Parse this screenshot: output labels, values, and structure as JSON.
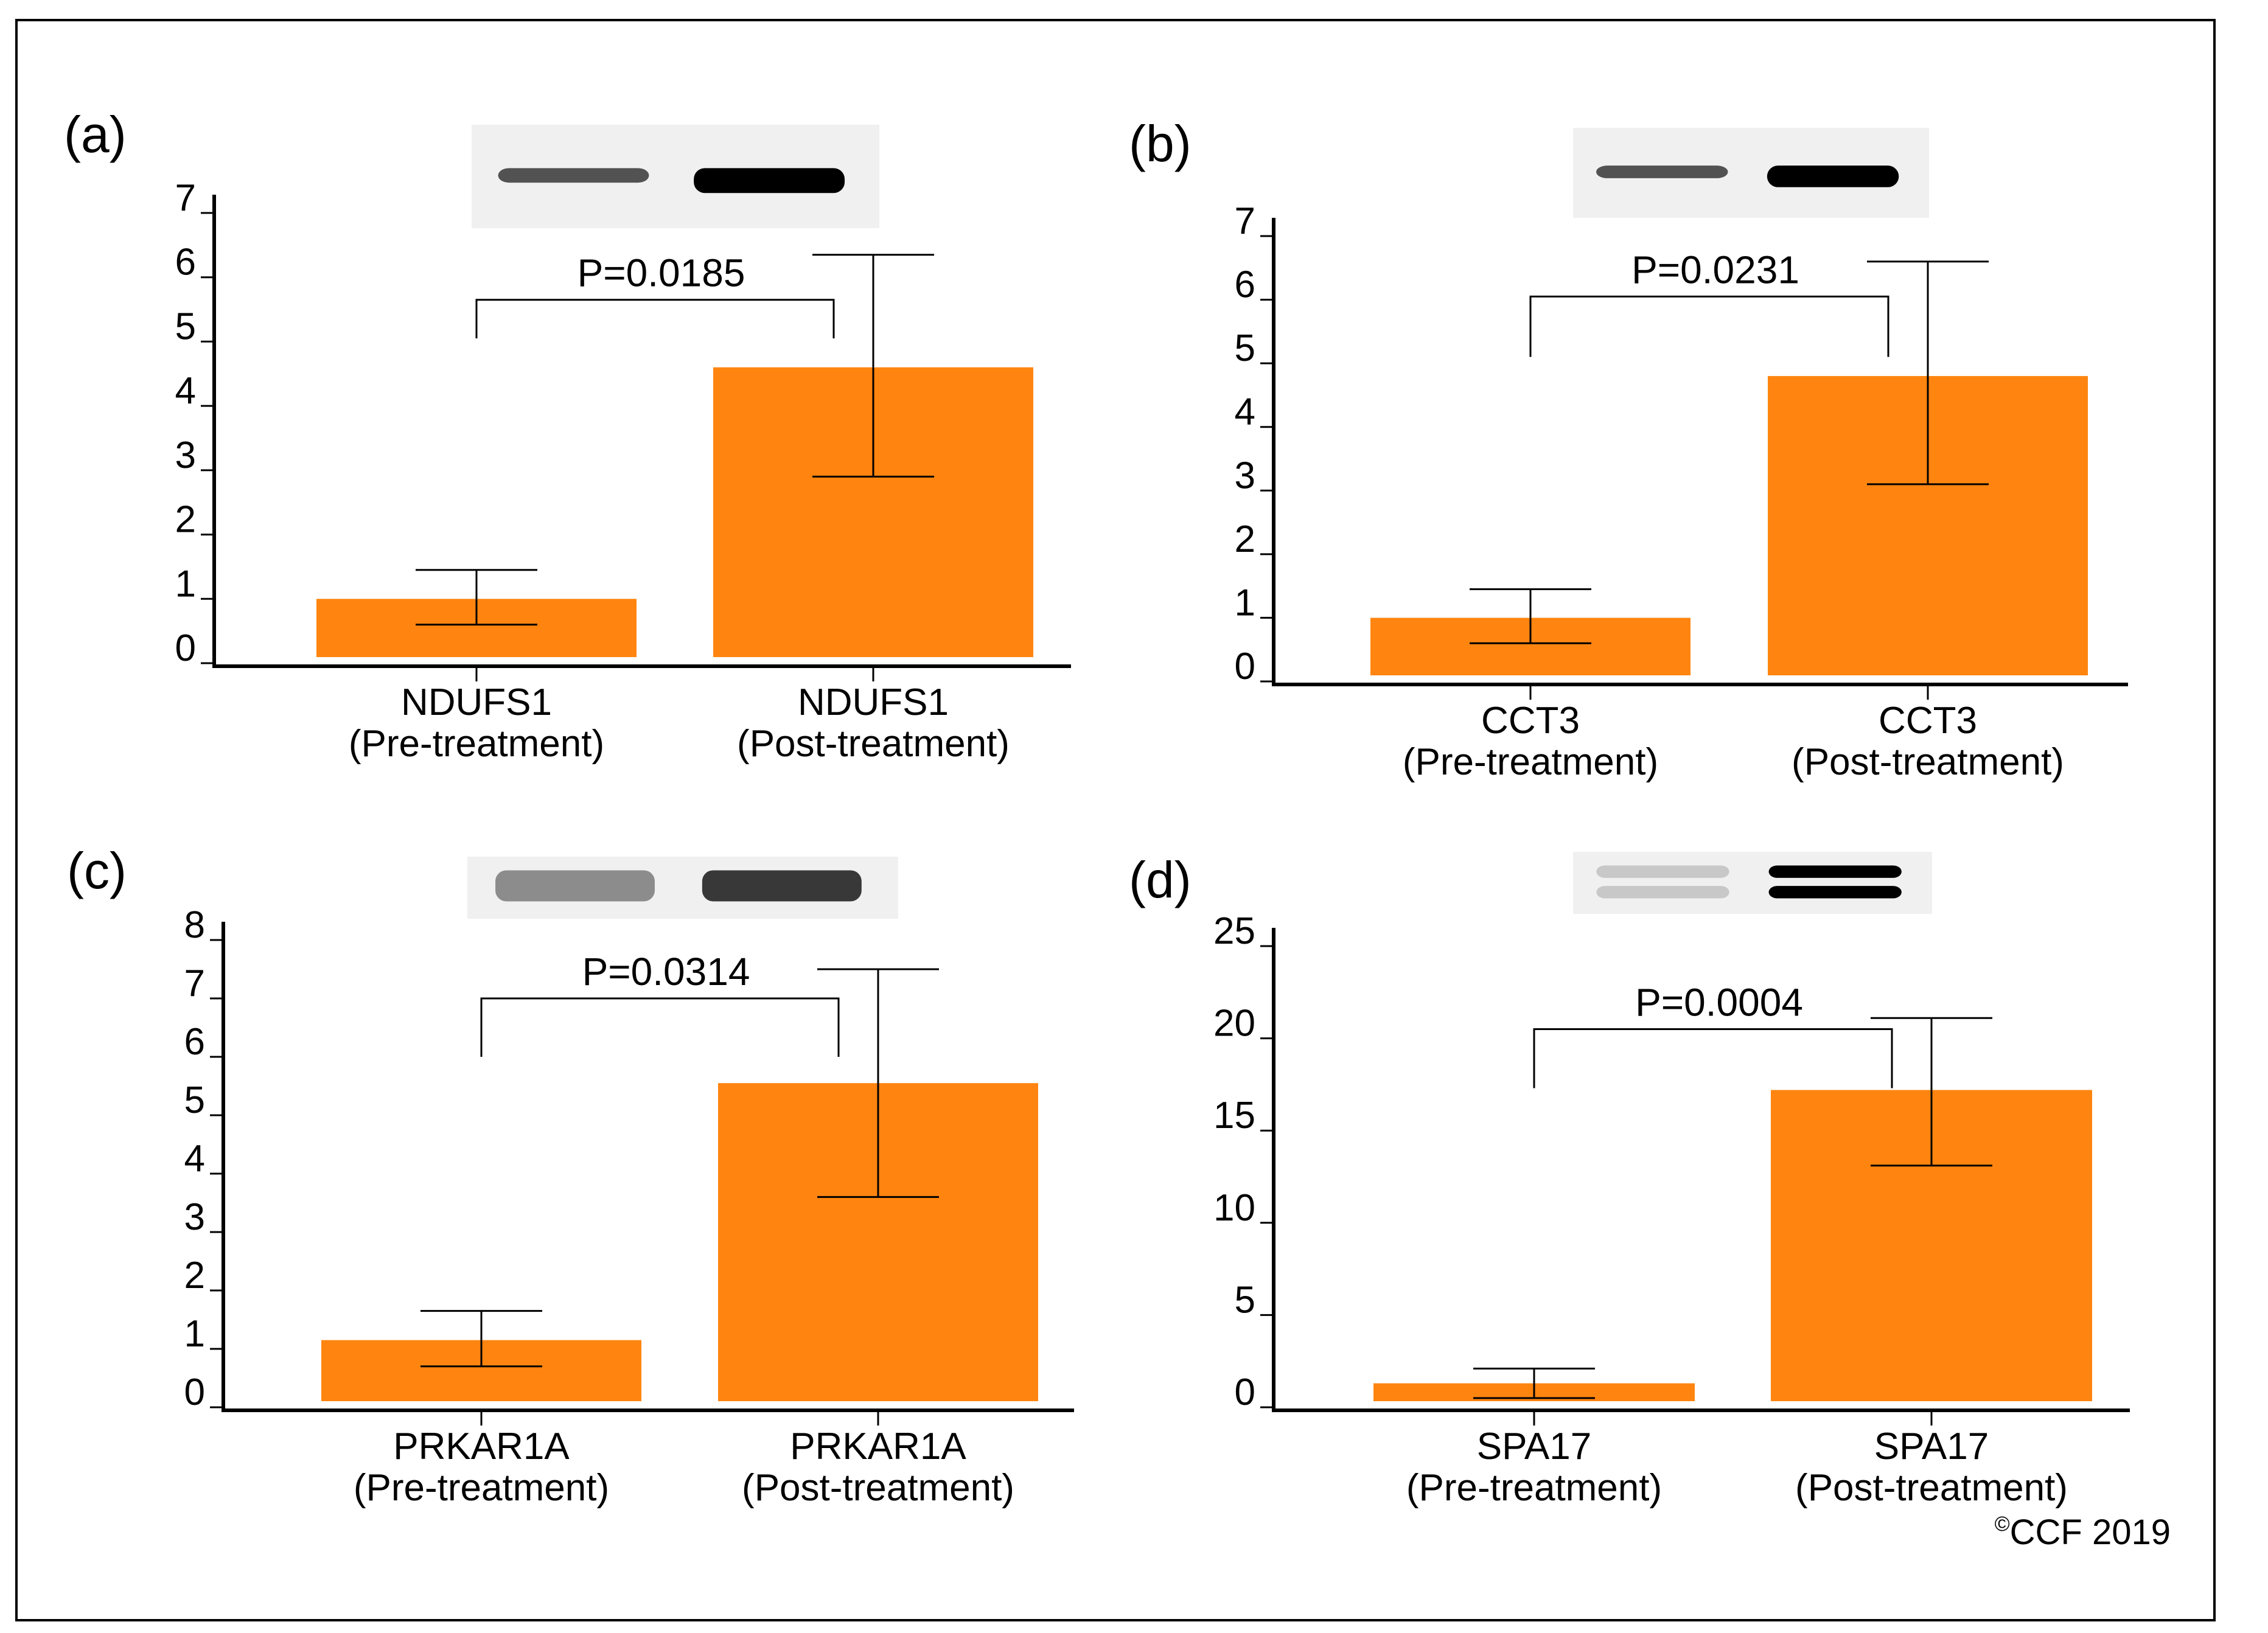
{
  "figure": {
    "bar_color": "#FF8510",
    "copyright": {
      "symbol": "©",
      "text": "CCF 2019"
    }
  },
  "chart_data": [
    {
      "type": "bar",
      "panel_label": "(a)",
      "categories": [
        "NDUFS1\n(Pre-treatment)",
        "NDUFS1\n(Post-treatment)"
      ],
      "category_lines": [
        [
          "NDUFS1",
          "(Pre-treatment)"
        ],
        [
          "NDUFS1",
          "(Post-treatment)"
        ]
      ],
      "values": [
        1.0,
        4.6
      ],
      "error_low": [
        0.6,
        2.9
      ],
      "error_high": [
        1.45,
        6.35
      ],
      "ylim": [
        0,
        7
      ],
      "yticks": [
        0,
        1,
        2,
        3,
        4,
        5,
        6,
        7
      ],
      "significance": {
        "label": "P=0.0185",
        "bracket_level": 5.65,
        "bracket_drop": 0.6
      },
      "blot": {
        "lane_intensity": [
          0.65,
          1.0
        ],
        "lane_count": 2,
        "style": "single"
      }
    },
    {
      "type": "bar",
      "panel_label": "(b)",
      "categories": [
        "CCT3\n(Pre-treatment)",
        "CCT3\n(Post-treatment)"
      ],
      "category_lines": [
        [
          "CCT3",
          "(Pre-treatment)"
        ],
        [
          "CCT3",
          "(Post-treatment)"
        ]
      ],
      "values": [
        1.0,
        4.8
      ],
      "error_low": [
        0.6,
        3.1
      ],
      "error_high": [
        1.45,
        6.6
      ],
      "ylim": [
        0,
        7
      ],
      "yticks": [
        0,
        1,
        2,
        3,
        4,
        5,
        6,
        7
      ],
      "significance": {
        "label": "P=0.0231",
        "bracket_level": 6.05,
        "bracket_drop": 0.95
      },
      "blot": {
        "lane_intensity": [
          0.65,
          1.0
        ],
        "lane_count": 2,
        "style": "single"
      }
    },
    {
      "type": "bar",
      "panel_label": "(c)",
      "categories": [
        "PRKAR1A\n(Pre-treatment)",
        "PRKAR1A\n(Post-treatment)"
      ],
      "category_lines": [
        [
          "PRKAR1A",
          "(Pre-treatment)"
        ],
        [
          "PRKAR1A",
          "(Post-treatment)"
        ]
      ],
      "values": [
        1.15,
        5.55
      ],
      "error_low": [
        0.7,
        3.6
      ],
      "error_high": [
        1.65,
        7.5
      ],
      "ylim": [
        0,
        8
      ],
      "yticks": [
        0,
        1,
        2,
        3,
        4,
        5,
        6,
        7,
        8
      ],
      "significance": {
        "label": "P=0.0314",
        "bracket_level": 7.0,
        "bracket_drop": 1.0
      },
      "blot": {
        "lane_intensity": [
          0.45,
          0.85
        ],
        "lane_count": 2,
        "style": "smear"
      }
    },
    {
      "type": "bar",
      "panel_label": "(d)",
      "categories": [
        "SPA17\n(Pre-treatment)",
        "SPA17\n(Post-treatment)"
      ],
      "category_lines": [
        [
          "SPA17",
          "(Pre-treatment)"
        ],
        [
          "SPA17",
          "(Post-treatment)"
        ]
      ],
      "values": [
        1.3,
        17.2
      ],
      "error_low": [
        0.5,
        13.1
      ],
      "error_high": [
        2.1,
        21.1
      ],
      "ylim": [
        0,
        25
      ],
      "yticks": [
        0,
        5,
        10,
        15,
        20,
        25
      ],
      "significance": {
        "label": "P=0.0004",
        "bracket_level": 20.5,
        "bracket_drop": 3.2
      },
      "blot": {
        "lane_intensity": [
          0.15,
          1.0
        ],
        "lane_count": 2,
        "style": "double"
      }
    }
  ]
}
